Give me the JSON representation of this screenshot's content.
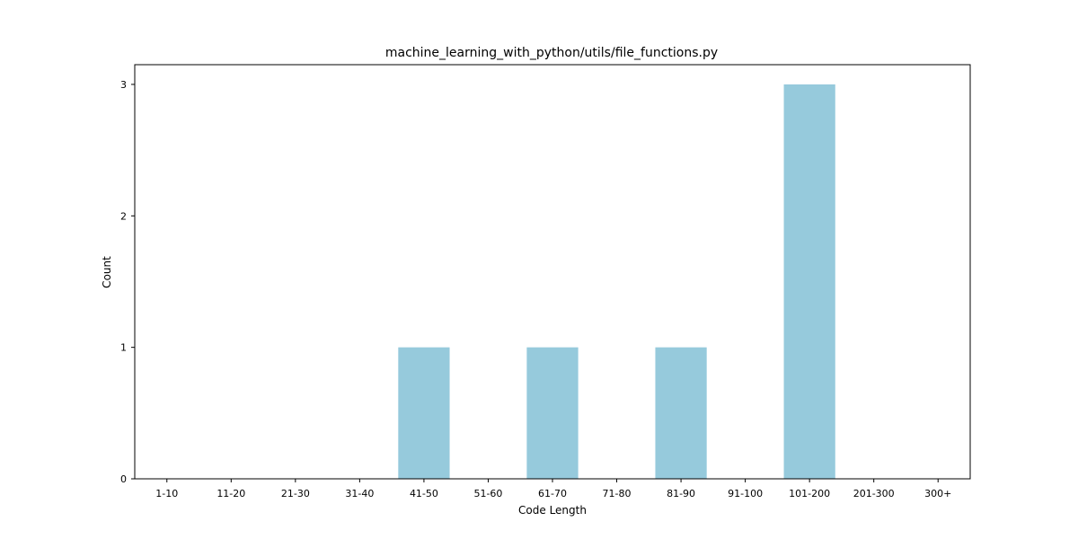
{
  "chart_data": {
    "type": "bar",
    "title": "machine_learning_with_python/utils/file_functions.py",
    "xlabel": "Code Length",
    "ylabel": "Count",
    "categories": [
      "1-10",
      "11-20",
      "21-30",
      "31-40",
      "41-50",
      "51-60",
      "61-70",
      "71-80",
      "81-90",
      "91-100",
      "101-200",
      "201-300",
      "300+"
    ],
    "values": [
      0,
      0,
      0,
      0,
      1,
      0,
      1,
      0,
      1,
      0,
      3,
      0,
      0
    ],
    "yticks": [
      0,
      1,
      2,
      3
    ],
    "ylim": [
      0,
      3.15
    ],
    "bar_color": "#96cadc",
    "grid": false,
    "legend": "none"
  }
}
